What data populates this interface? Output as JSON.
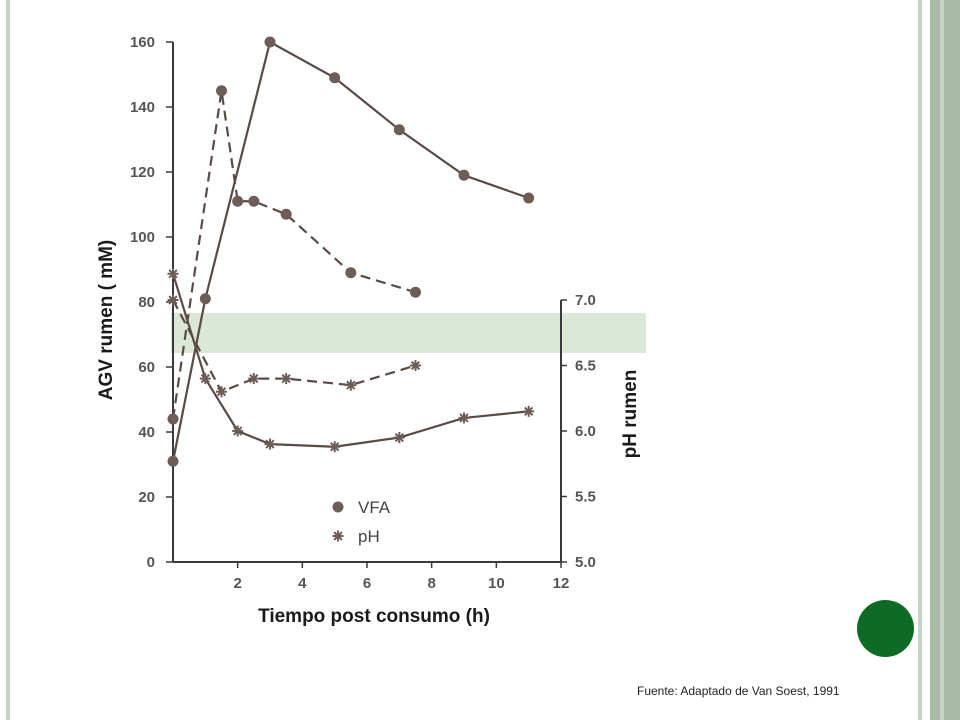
{
  "chart_data": {
    "type": "line",
    "xlabel": "Tiempo post consumo (h)",
    "ylabel": "AGV rumen  ( mM)",
    "y2label": "pH  rumen",
    "xlim": [
      0,
      12
    ],
    "ylim": [
      0,
      160
    ],
    "y2lim": [
      5.0,
      7.0
    ],
    "xticks": [
      "2",
      "4",
      "6",
      "8",
      "10",
      "12"
    ],
    "yticks": [
      "0",
      "20",
      "40",
      "60",
      "80",
      "100",
      "120",
      "140",
      "160"
    ],
    "y2ticks": [
      "5.0",
      "5.5",
      "6.0",
      "6.5",
      "7.0"
    ],
    "legend": {
      "position": "bottom-center",
      "items": [
        "VFA",
        "pH"
      ]
    },
    "highlight_band": {
      "color": "#dbe8d8"
    },
    "series": [
      {
        "name": "VFA",
        "axis": "left",
        "dash": true,
        "marker": "dot",
        "x": [
          0,
          1.5,
          2,
          2.5,
          3.5,
          5.5,
          7.5
        ],
        "y": [
          44,
          145,
          111,
          111,
          107,
          89,
          83
        ]
      },
      {
        "name": "VFA",
        "axis": "left",
        "dash": false,
        "marker": "dot",
        "x": [
          0,
          1,
          3,
          5,
          7,
          9,
          11
        ],
        "y": [
          31,
          81,
          160,
          149,
          133,
          119,
          112
        ]
      },
      {
        "name": "pH",
        "axis": "right",
        "dash": true,
        "marker": "star",
        "x": [
          0,
          1.5,
          2.5,
          3.5,
          5.5,
          7.5
        ],
        "y": [
          7.0,
          6.3,
          6.4,
          6.4,
          6.35,
          6.5
        ]
      },
      {
        "name": "pH",
        "axis": "right",
        "dash": false,
        "marker": "star",
        "x": [
          0,
          1,
          2,
          3,
          5,
          7,
          9,
          11
        ],
        "y": [
          7.2,
          6.4,
          6.0,
          5.9,
          5.88,
          5.95,
          6.1,
          6.15
        ]
      }
    ]
  },
  "source_note": "Fuente: Adaptado de Van Soest, 1991",
  "colors": {
    "marker": "#6e5c57",
    "line": "#5a4a46",
    "accent_dot": "#0e6b25",
    "frame": "#a9bba6"
  }
}
